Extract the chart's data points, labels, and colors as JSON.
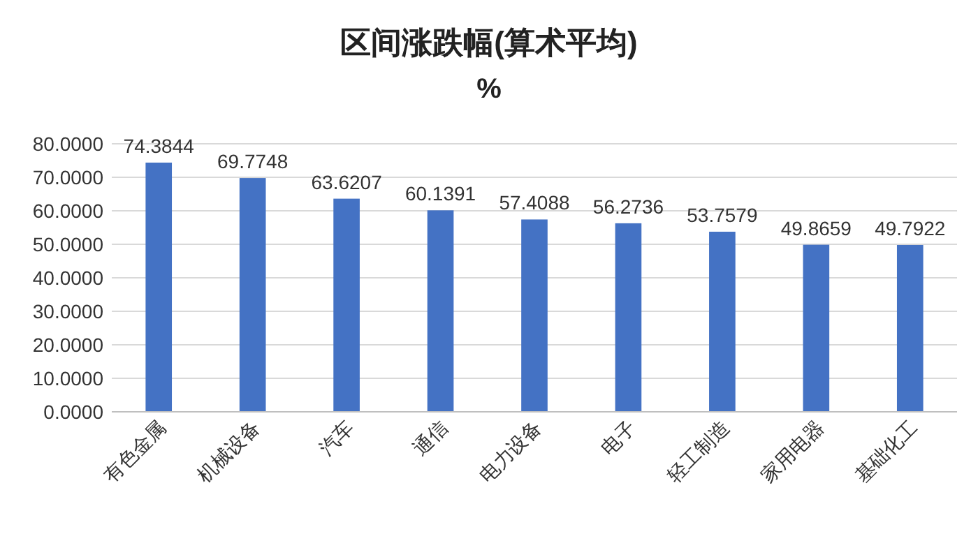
{
  "chart_data": {
    "type": "bar",
    "title": "区间涨跌幅(算术平均)",
    "subtitle": "%",
    "categories": [
      "有色金属",
      "机械设备",
      "汽车",
      "通信",
      "电力设备",
      "电子",
      "轻工制造",
      "家用电器",
      "基础化工"
    ],
    "series": [
      {
        "color": "#4472c4",
        "values": [
          74.3844,
          69.7748,
          63.6207,
          60.1391,
          57.4088,
          56.2736,
          53.7579,
          49.8659,
          49.7922
        ]
      }
    ],
    "ylim": [
      0,
      80
    ],
    "yticks": [
      {
        "value": 0,
        "label": "0.0000"
      },
      {
        "value": 10,
        "label": "10.0000"
      },
      {
        "value": 20,
        "label": "20.0000"
      },
      {
        "value": 30,
        "label": "30.0000"
      },
      {
        "value": 40,
        "label": "40.0000"
      },
      {
        "value": 50,
        "label": "50.0000"
      },
      {
        "value": 60,
        "label": "60.0000"
      },
      {
        "value": 70,
        "label": "70.0000"
      },
      {
        "value": 80,
        "label": "80.0000"
      }
    ],
    "grid": "y",
    "data_labels": true
  }
}
